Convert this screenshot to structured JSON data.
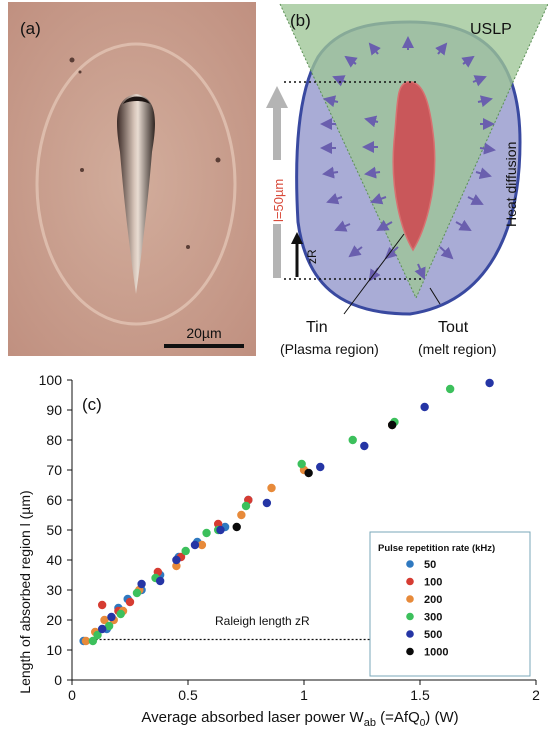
{
  "panel_a": {
    "label": "(a)",
    "scale_bar_text": "20µm"
  },
  "panel_b": {
    "label": "(b)",
    "uslp_text": "USLP",
    "heat_text": "Heat diffusion",
    "length_text": "l=50µm",
    "zr_text": "zR",
    "t_in": "Tin",
    "t_in_sub": "(Plasma region)",
    "t_out": "Tout",
    "t_out_sub": "(melt region)",
    "colors": {
      "cone": "#a6c9a0",
      "melt_fill": "#a9acd6",
      "melt_stroke": "#3949a0",
      "plasma_fill": "#c9575a",
      "arrow": "#6a5fae",
      "length_text": "#d84a3a"
    }
  },
  "panel_c": {
    "label": "(c)",
    "raleigh_text": "Raleigh length zR"
  },
  "chart_data": {
    "type": "scatter",
    "xlabel": "Average absorbed laser power W",
    "xlabel_sub": "ab",
    "xlabel_tail": " (=AfQ",
    "xlabel_tail_sub": "0",
    "xlabel_end": ") (W)",
    "ylabel": "Length of absorbed region l (µm)",
    "xlim": [
      0,
      2
    ],
    "ylim": [
      0,
      100
    ],
    "xticks": [
      "0",
      "0.5",
      "1",
      "1.5",
      "2"
    ],
    "yticks": [
      "0",
      "10",
      "20",
      "30",
      "40",
      "50",
      "60",
      "70",
      "80",
      "90",
      "100"
    ],
    "hline": 13.5,
    "legend_title": "Pulse repetition rate (kHz)",
    "legend_position": "bottom-right",
    "series": [
      {
        "name": "50",
        "color": "#2f79c0",
        "points": [
          [
            0.05,
            13
          ],
          [
            0.15,
            17
          ],
          [
            0.2,
            24
          ],
          [
            0.24,
            27
          ],
          [
            0.3,
            30
          ],
          [
            0.38,
            35
          ],
          [
            0.46,
            41
          ],
          [
            0.54,
            46
          ],
          [
            0.66,
            51
          ],
          [
            0.76,
            60
          ],
          [
            1.38,
            85
          ]
        ]
      },
      {
        "name": "100",
        "color": "#d63c32",
        "points": [
          [
            0.13,
            25
          ],
          [
            0.2,
            23
          ],
          [
            0.25,
            26
          ],
          [
            0.37,
            36
          ],
          [
            0.47,
            41
          ],
          [
            0.63,
            52
          ],
          [
            0.76,
            60
          ]
        ]
      },
      {
        "name": "200",
        "color": "#e78a3a",
        "points": [
          [
            0.06,
            13
          ],
          [
            0.1,
            16
          ],
          [
            0.14,
            20
          ],
          [
            0.18,
            20
          ],
          [
            0.22,
            23
          ],
          [
            0.29,
            30
          ],
          [
            0.45,
            38
          ],
          [
            0.56,
            45
          ],
          [
            0.73,
            55
          ],
          [
            0.86,
            64
          ],
          [
            1.0,
            70
          ],
          [
            1.38,
            85
          ]
        ]
      },
      {
        "name": "300",
        "color": "#3cc05c",
        "points": [
          [
            0.09,
            13
          ],
          [
            0.11,
            15
          ],
          [
            0.16,
            18
          ],
          [
            0.21,
            22
          ],
          [
            0.28,
            29
          ],
          [
            0.36,
            34
          ],
          [
            0.49,
            43
          ],
          [
            0.58,
            49
          ],
          [
            0.63,
            50
          ],
          [
            0.75,
            58
          ],
          [
            0.99,
            72
          ],
          [
            1.21,
            80
          ],
          [
            1.39,
            86
          ],
          [
            1.63,
            97
          ]
        ]
      },
      {
        "name": "500",
        "color": "#2535a5",
        "points": [
          [
            0.13,
            17
          ],
          [
            0.17,
            21
          ],
          [
            0.3,
            32
          ],
          [
            0.38,
            33
          ],
          [
            0.45,
            40
          ],
          [
            0.53,
            45
          ],
          [
            0.64,
            50
          ],
          [
            0.84,
            59
          ],
          [
            1.07,
            71
          ],
          [
            1.26,
            78
          ],
          [
            1.52,
            91
          ],
          [
            1.8,
            99
          ]
        ]
      },
      {
        "name": "1000",
        "color": "#0a0a0a",
        "points": [
          [
            0.71,
            51
          ],
          [
            1.02,
            69
          ],
          [
            1.38,
            85
          ]
        ]
      }
    ]
  }
}
